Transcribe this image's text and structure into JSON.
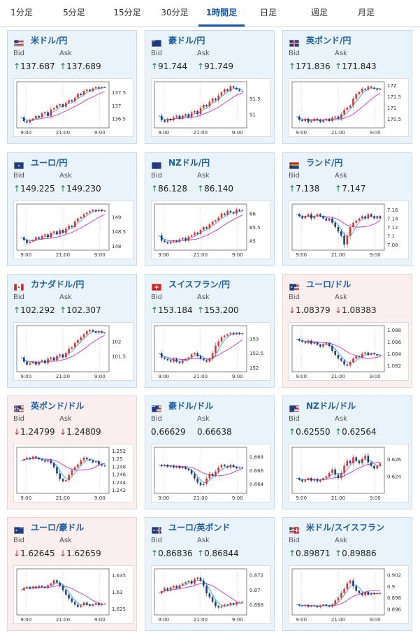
{
  "tabs": [
    "1分足",
    "5分足",
    "15分足",
    "30分足",
    "1時間足",
    "日足",
    "週足",
    "月足"
  ],
  "active_tab": "1時間足",
  "labels": {
    "bid": "Bid",
    "ask": "Ask"
  },
  "colors": {
    "up": "#1b7a3c",
    "down": "#c03030",
    "title": "#1b5fa8",
    "candle_up": "#e03030",
    "candle_down": "#1b3d8a",
    "ma_fast": "#33aadd",
    "ma_slow": "#cc33cc"
  },
  "cards": [
    {
      "name": "usd-jpy",
      "title": "米ドル/円",
      "flag": "us",
      "dir": "up",
      "bid": "137.687",
      "ask": "137.689",
      "yticks": [
        "137.5",
        "137",
        "136.5"
      ],
      "xticks": [
        "9:00",
        "21:00",
        "9:00"
      ],
      "ylim": [
        136.2,
        137.85
      ],
      "series": [
        136.55,
        136.4,
        136.35,
        136.45,
        136.5,
        136.6,
        136.55,
        136.7,
        136.75,
        136.6,
        136.85,
        136.9,
        137.0,
        137.05,
        136.95,
        137.1,
        137.2,
        137.15,
        137.3,
        137.45,
        137.4,
        137.55,
        137.6,
        137.55,
        137.65,
        137.7,
        137.65,
        137.7,
        137.68
      ]
    },
    {
      "name": "aud-jpy",
      "title": "豪ドル/円",
      "flag": "au",
      "dir": "up",
      "bid": "91.744",
      "ask": "91.749",
      "yticks": [
        "91.5",
        "91"
      ],
      "xticks": [
        "9:00",
        "21:00",
        "9:00"
      ],
      "ylim": [
        90.6,
        92.0
      ],
      "series": [
        90.95,
        90.8,
        90.75,
        90.85,
        90.8,
        90.9,
        90.95,
        90.85,
        90.95,
        91.0,
        90.9,
        91.05,
        91.1,
        91.0,
        91.2,
        91.3,
        91.25,
        91.4,
        91.5,
        91.45,
        91.6,
        91.7,
        91.8,
        91.75,
        91.9,
        91.85,
        91.8,
        91.75,
        91.74
      ]
    },
    {
      "name": "gbp-jpy",
      "title": "英ポンド/円",
      "flag": "gb",
      "dir": "up",
      "bid": "171.836",
      "ask": "171.843",
      "yticks": [
        "172",
        "171.5",
        "171",
        "170.5"
      ],
      "xticks": [
        "9:00",
        "21:00",
        "9:00"
      ],
      "ylim": [
        170.15,
        172.1
      ],
      "series": [
        170.6,
        170.45,
        170.4,
        170.5,
        170.35,
        170.4,
        170.5,
        170.45,
        170.35,
        170.45,
        170.5,
        170.4,
        170.55,
        170.6,
        170.5,
        170.7,
        170.9,
        171.0,
        171.1,
        171.4,
        171.6,
        171.7,
        171.85,
        171.8,
        171.95,
        171.9,
        171.85,
        171.8,
        171.84
      ]
    },
    {
      "name": "eur-jpy",
      "title": "ユーロ/円",
      "flag": "eu",
      "dir": "up",
      "bid": "149.225",
      "ask": "149.230",
      "yticks": [
        "149",
        "148.5",
        "148"
      ],
      "xticks": [
        "9:00",
        "21:00",
        "9:00"
      ],
      "ylim": [
        147.9,
        149.4
      ],
      "series": [
        148.3,
        148.2,
        148.1,
        148.15,
        148.2,
        148.3,
        148.25,
        148.35,
        148.4,
        148.3,
        148.45,
        148.5,
        148.4,
        148.55,
        148.45,
        148.6,
        148.7,
        148.65,
        148.85,
        148.95,
        149.0,
        149.1,
        149.15,
        149.2,
        149.25,
        149.2,
        149.25,
        149.2,
        149.22
      ]
    },
    {
      "name": "nzd-jpy",
      "title": "NZドル/円",
      "flag": "nz",
      "dir": "up",
      "bid": "86.128",
      "ask": "86.140",
      "yticks": [
        "86",
        "85.5",
        "85"
      ],
      "xticks": [
        "9:00",
        "21:00",
        "9:00"
      ],
      "ylim": [
        84.7,
        86.3
      ],
      "series": [
        85.2,
        85.0,
        84.95,
        84.9,
        84.95,
        85.0,
        84.95,
        85.05,
        85.1,
        85.0,
        85.15,
        85.2,
        85.3,
        85.25,
        85.4,
        85.5,
        85.45,
        85.6,
        85.7,
        85.75,
        85.85,
        86.0,
        85.95,
        86.1,
        86.05,
        86.0,
        86.15,
        86.1,
        86.13
      ]
    },
    {
      "name": "zar-jpy",
      "title": "ランド/円",
      "flag": "za",
      "dir": "up",
      "bid": "7.138",
      "ask": "7.147",
      "yticks": [
        "7.16",
        "7.14",
        "7.12",
        "7.1",
        "7.08"
      ],
      "xticks": [
        "9:00",
        "21:00",
        "9:00"
      ],
      "ylim": [
        7.07,
        7.17
      ],
      "series": [
        7.15,
        7.145,
        7.14,
        7.145,
        7.15,
        7.14,
        7.145,
        7.15,
        7.145,
        7.14,
        7.135,
        7.14,
        7.13,
        7.12,
        7.11,
        7.1,
        7.08,
        7.1,
        7.12,
        7.13,
        7.135,
        7.14,
        7.145,
        7.14,
        7.15,
        7.145,
        7.14,
        7.145,
        7.14
      ]
    },
    {
      "name": "cad-jpy",
      "title": "カナダドル/円",
      "flag": "ca",
      "dir": "up",
      "bid": "102.292",
      "ask": "102.307",
      "yticks": [
        "102",
        "101.5"
      ],
      "xticks": [
        "9:00",
        "21:00",
        "9:00"
      ],
      "ylim": [
        101.0,
        102.5
      ],
      "series": [
        101.45,
        101.3,
        101.2,
        101.25,
        101.3,
        101.2,
        101.3,
        101.35,
        101.25,
        101.4,
        101.45,
        101.35,
        101.5,
        101.55,
        101.45,
        101.6,
        101.75,
        101.8,
        101.95,
        102.05,
        102.15,
        102.25,
        102.35,
        102.4,
        102.35,
        102.3,
        102.35,
        102.3,
        102.29
      ]
    },
    {
      "name": "chf-jpy",
      "title": "スイスフラン/円",
      "flag": "ch",
      "dir": "up",
      "bid": "153.184",
      "ask": "153.200",
      "yticks": [
        "153",
        "152.5",
        "152"
      ],
      "xticks": [
        "9:00",
        "21:00",
        "9:00"
      ],
      "ylim": [
        151.9,
        153.4
      ],
      "series": [
        152.5,
        152.35,
        152.3,
        152.25,
        152.2,
        152.3,
        152.2,
        152.15,
        152.25,
        152.3,
        152.35,
        152.45,
        152.5,
        152.4,
        152.3,
        152.25,
        152.2,
        152.3,
        152.5,
        152.75,
        152.9,
        153.05,
        153.1,
        153.15,
        153.2,
        153.15,
        153.2,
        153.15,
        153.18
      ]
    },
    {
      "name": "eur-usd",
      "title": "ユーロ/ドル",
      "flag": "eu-us",
      "dir": "down",
      "bid": "1.08379",
      "ask": "1.08383",
      "yticks": [
        "1.088",
        "1.086",
        "1.084",
        "1.082"
      ],
      "xticks": [
        "9:00",
        "21:00",
        "9:00"
      ],
      "ylim": [
        1.0812,
        1.0885
      ],
      "series": [
        1.0865,
        1.0862,
        1.086,
        1.0858,
        1.0862,
        1.0857,
        1.0859,
        1.0855,
        1.0852,
        1.0856,
        1.0858,
        1.0853,
        1.0845,
        1.0838,
        1.0832,
        1.0828,
        1.0822,
        1.082,
        1.0826,
        1.0832,
        1.0836,
        1.0834,
        1.084,
        1.0842,
        1.0838,
        1.0841,
        1.0839,
        1.0837,
        1.0838
      ]
    },
    {
      "name": "gbp-usd",
      "title": "英ポンド/ドル",
      "flag": "gb-us",
      "dir": "down",
      "bid": "1.24799",
      "ask": "1.24809",
      "yticks": [
        "1.252",
        "1.25",
        "1.248",
        "1.246",
        "1.244",
        "1.242"
      ],
      "xticks": [
        "9:00",
        "21:00",
        "9:00"
      ],
      "ylim": [
        1.2415,
        1.2525
      ],
      "series": [
        1.2495,
        1.2498,
        1.2502,
        1.2499,
        1.2505,
        1.2502,
        1.2498,
        1.2495,
        1.2492,
        1.2496,
        1.2488,
        1.2478,
        1.2462,
        1.2448,
        1.2442,
        1.2445,
        1.2458,
        1.247,
        1.2478,
        1.2485,
        1.2495,
        1.2502,
        1.2498,
        1.2495,
        1.249,
        1.2493,
        1.2485,
        1.2482,
        1.248
      ]
    },
    {
      "name": "aud-usd",
      "title": "豪ドル/ドル",
      "flag": "au-us",
      "dir": "flat",
      "bid": "0.66629",
      "ask": "0.66638",
      "yticks": [
        "0.668",
        "0.666",
        "0.664"
      ],
      "xticks": [
        "9:00",
        "21:00",
        "9:00"
      ],
      "ylim": [
        0.6628,
        0.6692
      ],
      "series": [
        0.6668,
        0.6666,
        0.6668,
        0.6665,
        0.6667,
        0.6664,
        0.6666,
        0.6663,
        0.6665,
        0.6662,
        0.666,
        0.6655,
        0.6648,
        0.6642,
        0.6638,
        0.664,
        0.6648,
        0.6655,
        0.6652,
        0.6658,
        0.6664,
        0.6668,
        0.6666,
        0.6664,
        0.6668,
        0.6665,
        0.6663,
        0.6664,
        0.6663
      ]
    },
    {
      "name": "nzd-usd",
      "title": "NZドル/ドル",
      "flag": "nz-us",
      "dir": "up",
      "bid": "0.62550",
      "ask": "0.62564",
      "yticks": [
        "0.626",
        "0.624"
      ],
      "xticks": [
        "9:00",
        "21:00",
        "9:00"
      ],
      "ylim": [
        0.6222,
        0.6272
      ],
      "series": [
        0.6238,
        0.6236,
        0.6234,
        0.6236,
        0.6238,
        0.6235,
        0.6237,
        0.6234,
        0.6236,
        0.6238,
        0.624,
        0.6244,
        0.6248,
        0.6242,
        0.6238,
        0.6244,
        0.6252,
        0.6258,
        0.6255,
        0.6262,
        0.6258,
        0.6255,
        0.626,
        0.6264,
        0.6256,
        0.6252,
        0.6249,
        0.6252,
        0.6255
      ]
    },
    {
      "name": "eur-aud",
      "title": "ユーロ/豪ドル",
      "flag": "eu-au",
      "dir": "down",
      "bid": "1.62645",
      "ask": "1.62659",
      "yticks": [
        "1.635",
        "1.63",
        "1.625"
      ],
      "xticks": [
        "9:00",
        "21:00",
        "9:00"
      ],
      "ylim": [
        1.6235,
        1.6365
      ],
      "series": [
        1.6305,
        1.6312,
        1.6315,
        1.631,
        1.6316,
        1.6312,
        1.6318,
        1.6315,
        1.6312,
        1.632,
        1.6325,
        1.6335,
        1.6328,
        1.6318,
        1.6305,
        1.6292,
        1.628,
        1.627,
        1.6262,
        1.6255,
        1.626,
        1.6268,
        1.6262,
        1.6258,
        1.6262,
        1.6266,
        1.626,
        1.6264,
        1.6265
      ]
    },
    {
      "name": "eur-gbp",
      "title": "ユーロ/英ポンド",
      "flag": "eu-gb",
      "dir": "up",
      "bid": "0.86836",
      "ask": "0.86844",
      "yticks": [
        "0.872",
        "0.87",
        "0.868"
      ],
      "xticks": [
        "9:00",
        "21:00",
        "9:00"
      ],
      "ylim": [
        0.8668,
        0.8726
      ],
      "series": [
        0.8695,
        0.8698,
        0.8702,
        0.8699,
        0.8703,
        0.8705,
        0.8702,
        0.8706,
        0.8708,
        0.871,
        0.8712,
        0.8708,
        0.8714,
        0.8716,
        0.8712,
        0.8705,
        0.8695,
        0.869,
        0.8684,
        0.8678,
        0.8676,
        0.8678,
        0.868,
        0.8679,
        0.8682,
        0.868,
        0.8683,
        0.8683,
        0.8684
      ]
    },
    {
      "name": "usd-chf",
      "title": "米ドル/スイスフラン",
      "flag": "us-ch",
      "dir": "up",
      "bid": "0.89871",
      "ask": "0.89886",
      "yticks": [
        "0.902",
        "0.9",
        "0.898",
        "0.896"
      ],
      "xticks": [
        "9:00",
        "21:00",
        "9:00"
      ],
      "ylim": [
        0.8952,
        0.9028
      ],
      "series": [
        0.8968,
        0.8966,
        0.8965,
        0.8967,
        0.8964,
        0.8966,
        0.8965,
        0.8963,
        0.8966,
        0.8968,
        0.8966,
        0.8964,
        0.8968,
        0.8975,
        0.898,
        0.8988,
        0.8995,
        0.9005,
        0.901,
        0.9,
        0.8992,
        0.8988,
        0.8984,
        0.899,
        0.8985,
        0.8988,
        0.8986,
        0.8988,
        0.8987
      ]
    }
  ]
}
